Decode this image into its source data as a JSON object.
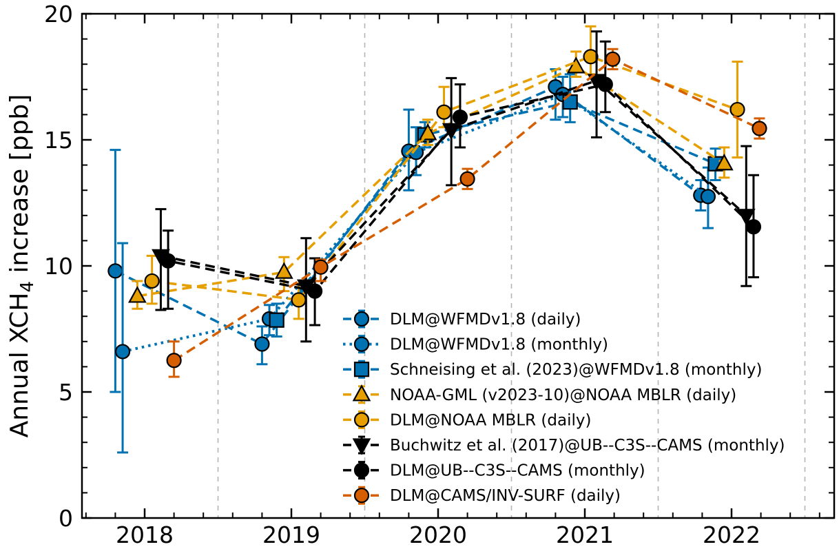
{
  "chart_data": {
    "type": "line",
    "title": "",
    "xlabel": "",
    "ylabel": {
      "prefix": "Annual XCH",
      "sub": "4",
      "suffix": " increase [ppb]"
    },
    "xlim": [
      2017.57,
      2022.7
    ],
    "ylim": [
      0,
      20
    ],
    "xticks": {
      "major": [
        2018,
        2019,
        2020,
        2021,
        2022
      ],
      "major_labels": [
        "2018",
        "2019",
        "2020",
        "2021",
        "2022"
      ],
      "minor_step": 0.2
    },
    "yticks": {
      "major": [
        0,
        5,
        10,
        15,
        20
      ],
      "major_labels": [
        "0",
        "5",
        "10",
        "15",
        "20"
      ],
      "minor_step": 1
    },
    "grid": {
      "vertical_dashed_at": [
        2018.5,
        2019.5,
        2020.5,
        2021.5,
        2022.5
      ],
      "color": "#b5b5b5"
    },
    "legend_position": "lower right inside",
    "series": [
      {
        "name": "DLM@WFMDv1.8 (daily)",
        "color": "#0072B2",
        "marker": "circle",
        "linestyle": "dashed",
        "points": [
          {
            "x": 2017.8,
            "y": 9.8,
            "lo": 5.0,
            "hi": 14.6
          },
          {
            "x": 2018.8,
            "y": 6.9,
            "lo": 6.1,
            "hi": 7.6
          },
          {
            "x": 2019.8,
            "y": 14.55,
            "lo": 13.0,
            "hi": 16.2
          },
          {
            "x": 2020.8,
            "y": 17.1,
            "lo": 15.8,
            "hi": 17.8
          },
          {
            "x": 2021.79,
            "y": 12.8,
            "lo": 12.2,
            "hi": 13.4
          }
        ]
      },
      {
        "name": "DLM@WFMDv1.8 (monthly)",
        "color": "#0072B2",
        "marker": "circle",
        "linestyle": "dotted",
        "points": [
          {
            "x": 2017.85,
            "y": 6.6,
            "lo": 2.6,
            "hi": 10.9
          },
          {
            "x": 2018.85,
            "y": 7.9,
            "lo": 7.25,
            "hi": 8.45
          },
          {
            "x": 2019.85,
            "y": 14.5,
            "lo": 13.6,
            "hi": 15.5
          },
          {
            "x": 2020.85,
            "y": 16.8,
            "lo": 15.9,
            "hi": 17.5
          },
          {
            "x": 2021.84,
            "y": 12.75,
            "lo": 11.5,
            "hi": 13.9
          }
        ]
      },
      {
        "name": "Schneising et al. (2023)@WFMDv1.8 (monthly)",
        "color": "#0072B2",
        "marker": "square",
        "linestyle": "dashed",
        "points": [
          {
            "x": 2018.9,
            "y": 7.85,
            "lo": 7.2,
            "hi": 8.5
          },
          {
            "x": 2019.91,
            "y": 15.2,
            "lo": 14.7,
            "hi": 15.7
          },
          {
            "x": 2020.9,
            "y": 16.5,
            "lo": 15.7,
            "hi": 17.6
          },
          {
            "x": 2021.89,
            "y": 14.05,
            "lo": 13.4,
            "hi": 14.65
          }
        ]
      },
      {
        "name": "NOAA-GML (v2023-10)@NOAA MBLR (daily)",
        "color": "#E69F00",
        "marker": "triangle-up",
        "linestyle": "dashed",
        "points": [
          {
            "x": 2017.95,
            "y": 8.8,
            "lo": 8.3,
            "hi": 9.4
          },
          {
            "x": 2018.95,
            "y": 9.75,
            "lo": 9.0,
            "hi": 10.35
          },
          {
            "x": 2019.93,
            "y": 15.25,
            "lo": 14.8,
            "hi": 15.8
          },
          {
            "x": 2020.94,
            "y": 17.9,
            "lo": 17.5,
            "hi": 18.5
          },
          {
            "x": 2021.95,
            "y": 14.05,
            "lo": 13.5,
            "hi": 14.7
          }
        ]
      },
      {
        "name": "DLM@NOAA MBLR (daily)",
        "color": "#E69F00",
        "marker": "circle",
        "linestyle": "dashed",
        "points": [
          {
            "x": 2018.05,
            "y": 9.4,
            "lo": 8.5,
            "hi": 10.4
          },
          {
            "x": 2019.05,
            "y": 8.65,
            "lo": 7.9,
            "hi": 9.3
          },
          {
            "x": 2020.04,
            "y": 16.1,
            "lo": 15.5,
            "hi": 17.1
          },
          {
            "x": 2021.04,
            "y": 18.3,
            "lo": 17.6,
            "hi": 19.5
          },
          {
            "x": 2022.04,
            "y": 16.2,
            "lo": 14.3,
            "hi": 18.1
          }
        ]
      },
      {
        "name": "Buchwitz et al. (2017)@UB--C3S--CAMS (monthly)",
        "color": "#000000",
        "marker": "triangle-down",
        "linestyle": "dashed",
        "points": [
          {
            "x": 2018.11,
            "y": 10.4,
            "lo": 8.25,
            "hi": 12.25
          },
          {
            "x": 2019.1,
            "y": 9.2,
            "lo": 7.0,
            "hi": 11.1
          },
          {
            "x": 2020.09,
            "y": 15.4,
            "lo": 13.2,
            "hi": 17.45
          },
          {
            "x": 2021.08,
            "y": 17.35,
            "lo": 15.1,
            "hi": 19.3
          },
          {
            "x": 2022.1,
            "y": 12.0,
            "lo": 9.2,
            "hi": 14.75
          }
        ]
      },
      {
        "name": "DLM@UB--C3S--CAMS (monthly)",
        "color": "#000000",
        "marker": "circle",
        "linestyle": "dashed",
        "points": [
          {
            "x": 2018.16,
            "y": 10.2,
            "lo": 8.3,
            "hi": 11.4
          },
          {
            "x": 2019.16,
            "y": 9.0,
            "lo": 7.65,
            "hi": 10.3
          },
          {
            "x": 2020.15,
            "y": 15.9,
            "lo": 14.7,
            "hi": 17.2
          },
          {
            "x": 2021.14,
            "y": 17.2,
            "lo": 16.1,
            "hi": 18.9
          },
          {
            "x": 2022.15,
            "y": 11.55,
            "lo": 9.55,
            "hi": 13.6
          }
        ]
      },
      {
        "name": "DLM@CAMS/INV-SURF (daily)",
        "color": "#D55E00",
        "marker": "circle",
        "linestyle": "dashed",
        "points": [
          {
            "x": 2018.2,
            "y": 6.25,
            "lo": 5.6,
            "hi": 7.0
          },
          {
            "x": 2019.2,
            "y": 9.95,
            "lo": 9.4,
            "hi": 10.25
          },
          {
            "x": 2020.2,
            "y": 13.45,
            "lo": 13.05,
            "hi": 13.85
          },
          {
            "x": 2021.19,
            "y": 18.2,
            "lo": 17.8,
            "hi": 18.6
          },
          {
            "x": 2022.19,
            "y": 15.45,
            "lo": 15.05,
            "hi": 15.85
          }
        ]
      }
    ],
    "colors": {
      "blue": "#0072B2",
      "gold": "#E69F00",
      "black": "#000000",
      "vermillion": "#D55E00",
      "grid": "#b5b5b5",
      "background": "#ffffff"
    }
  }
}
